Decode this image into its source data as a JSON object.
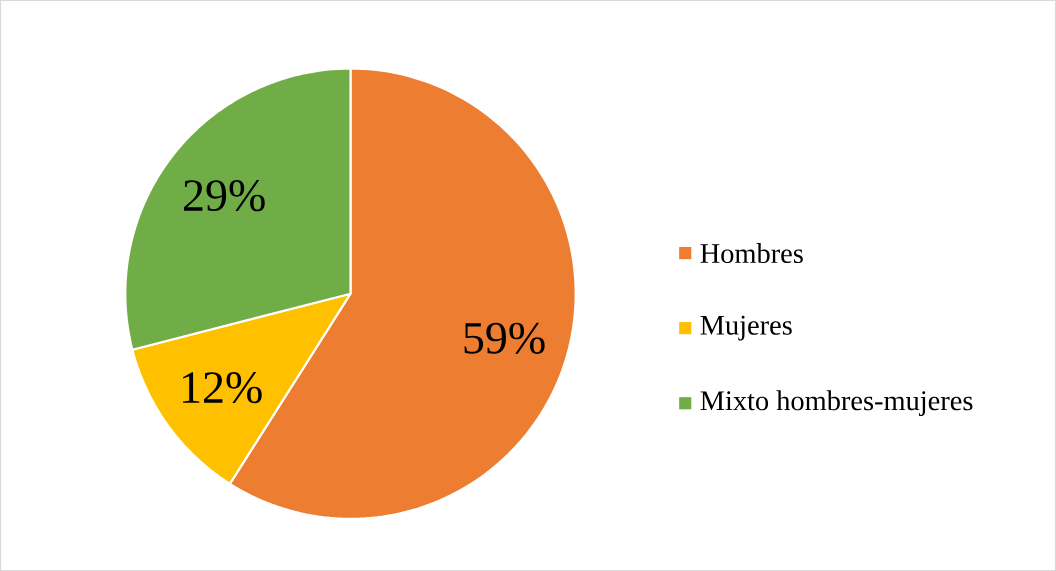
{
  "chart_data": {
    "type": "pie",
    "categories": [
      "Hombres",
      "Mujeres",
      "Mixto hombres-mujeres"
    ],
    "values": [
      59,
      12,
      29
    ],
    "colors": [
      "#ed7d31",
      "#ffc000",
      "#70ad47"
    ],
    "value_labels": [
      "59%",
      "12%",
      "29%"
    ],
    "legend": "right"
  }
}
